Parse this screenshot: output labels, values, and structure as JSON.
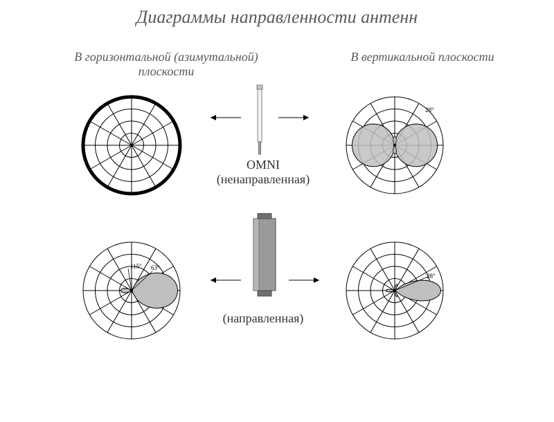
{
  "title": "Диаграммы направленности антенн",
  "headers": {
    "left_line1": "В горизонтальной (азимутальной)",
    "left_line2": "плоскости",
    "right": "В вертикальной плоскости"
  },
  "labels": {
    "omni_top": "OMNI",
    "omni_bottom": "(ненаправленная)",
    "directional": "(направленная)"
  },
  "polar_grid": {
    "rings": 4,
    "spokes": 12,
    "outer_radius": 70,
    "stroke": "#000000",
    "stroke_width": 1
  },
  "omni_h": {
    "pattern_rel_radius": 1.0,
    "pattern_stroke": "#000000",
    "pattern_stroke_width": 5
  },
  "omni_v": {
    "lobe_color": "#bfbfbf",
    "lobe_stroke": "#000000",
    "angle_label": "28°"
  },
  "dir_h": {
    "lobe_color": "#bfbfbf",
    "lobe_stroke": "#000000",
    "main_angle_label": "63°",
    "back_angle_label": "115°"
  },
  "dir_v": {
    "lobe_color": "#bfbfbf",
    "lobe_stroke": "#000000",
    "angle_label": "28°"
  },
  "arrow": {
    "stroke": "#000000",
    "width": 1
  },
  "omni_antenna": {
    "body_fill": "#f2f2f2",
    "body_stroke": "#808080",
    "tip_fill": "#c0c0c0"
  },
  "dir_antenna": {
    "body_fill": "#9a9a9a",
    "body_stroke": "#4d4d4d",
    "mount_fill": "#707070"
  },
  "bg": "#ffffff"
}
